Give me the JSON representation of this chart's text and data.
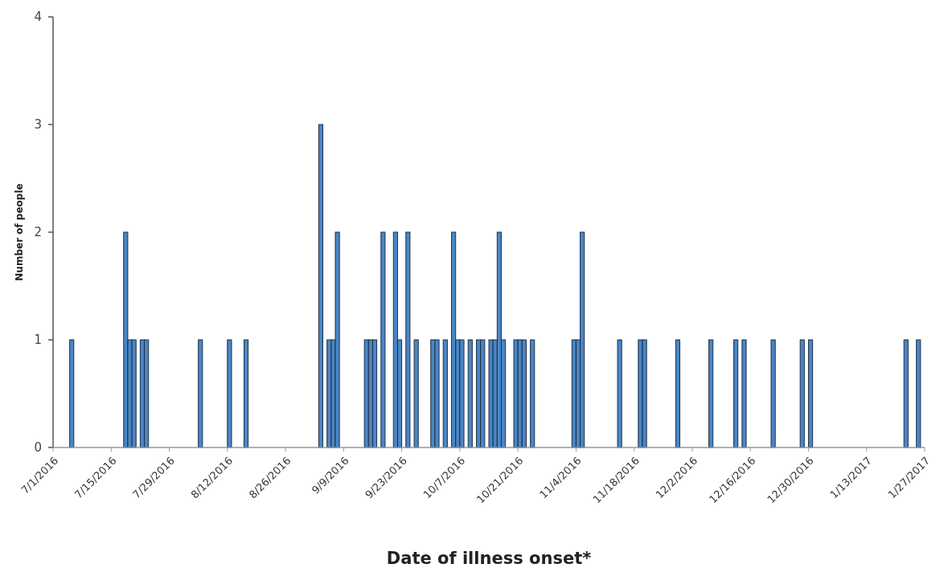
{
  "chart_data": {
    "type": "bar",
    "xlabel": "Date of illness onset*",
    "ylabel": "Number of people",
    "x": [
      "2016-07-05",
      "2016-07-18",
      "2016-07-19",
      "2016-07-20",
      "2016-07-22",
      "2016-07-23",
      "2016-08-05",
      "2016-08-12",
      "2016-08-16",
      "2016-09-03",
      "2016-09-05",
      "2016-09-06",
      "2016-09-07",
      "2016-09-14",
      "2016-09-15",
      "2016-09-16",
      "2016-09-18",
      "2016-09-21",
      "2016-09-22",
      "2016-09-24",
      "2016-09-26",
      "2016-09-30",
      "2016-10-01",
      "2016-10-03",
      "2016-10-05",
      "2016-10-06",
      "2016-10-07",
      "2016-10-09",
      "2016-10-11",
      "2016-10-12",
      "2016-10-14",
      "2016-10-15",
      "2016-10-16",
      "2016-10-17",
      "2016-10-20",
      "2016-10-21",
      "2016-10-22",
      "2016-10-24",
      "2016-11-03",
      "2016-11-04",
      "2016-11-05",
      "2016-11-14",
      "2016-11-19",
      "2016-11-20",
      "2016-11-28",
      "2016-12-06",
      "2016-12-12",
      "2016-12-14",
      "2016-12-21",
      "2016-12-28",
      "2016-12-30",
      "2017-01-22",
      "2017-01-25"
    ],
    "values": [
      1,
      2,
      1,
      1,
      1,
      1,
      1,
      1,
      1,
      3,
      1,
      1,
      2,
      1,
      1,
      1,
      2,
      2,
      1,
      2,
      1,
      1,
      1,
      1,
      2,
      1,
      1,
      1,
      1,
      1,
      1,
      1,
      2,
      1,
      1,
      1,
      1,
      1,
      1,
      1,
      2,
      1,
      1,
      1,
      1,
      1,
      1,
      1,
      1,
      1,
      1,
      1,
      1
    ],
    "color": "#4a86c6",
    "xlim": [
      "2016-07-01",
      "2017-01-27"
    ],
    "xticks": [
      {
        "value": "2016-07-01",
        "label": "7/1/2016"
      },
      {
        "value": "2016-07-15",
        "label": "7/15/2016"
      },
      {
        "value": "2016-07-29",
        "label": "7/29/2016"
      },
      {
        "value": "2016-08-12",
        "label": "8/12/2016"
      },
      {
        "value": "2016-08-26",
        "label": "8/26/2016"
      },
      {
        "value": "2016-09-09",
        "label": "9/9/2016"
      },
      {
        "value": "2016-09-23",
        "label": "9/23/2016"
      },
      {
        "value": "2016-10-07",
        "label": "10/7/2016"
      },
      {
        "value": "2016-10-21",
        "label": "10/21/2016"
      },
      {
        "value": "2016-11-04",
        "label": "11/4/2016"
      },
      {
        "value": "2016-11-18",
        "label": "11/18/2016"
      },
      {
        "value": "2016-12-02",
        "label": "12/2/2016"
      },
      {
        "value": "2016-12-16",
        "label": "12/16/2016"
      },
      {
        "value": "2016-12-30",
        "label": "12/30/2016"
      },
      {
        "value": "2017-01-13",
        "label": "1/13/2017"
      },
      {
        "value": "2017-01-27",
        "label": "1/27/2017"
      }
    ],
    "ylim": [
      0,
      4
    ],
    "yticks": [
      0,
      1,
      2,
      3,
      4
    ],
    "grid": false
  }
}
